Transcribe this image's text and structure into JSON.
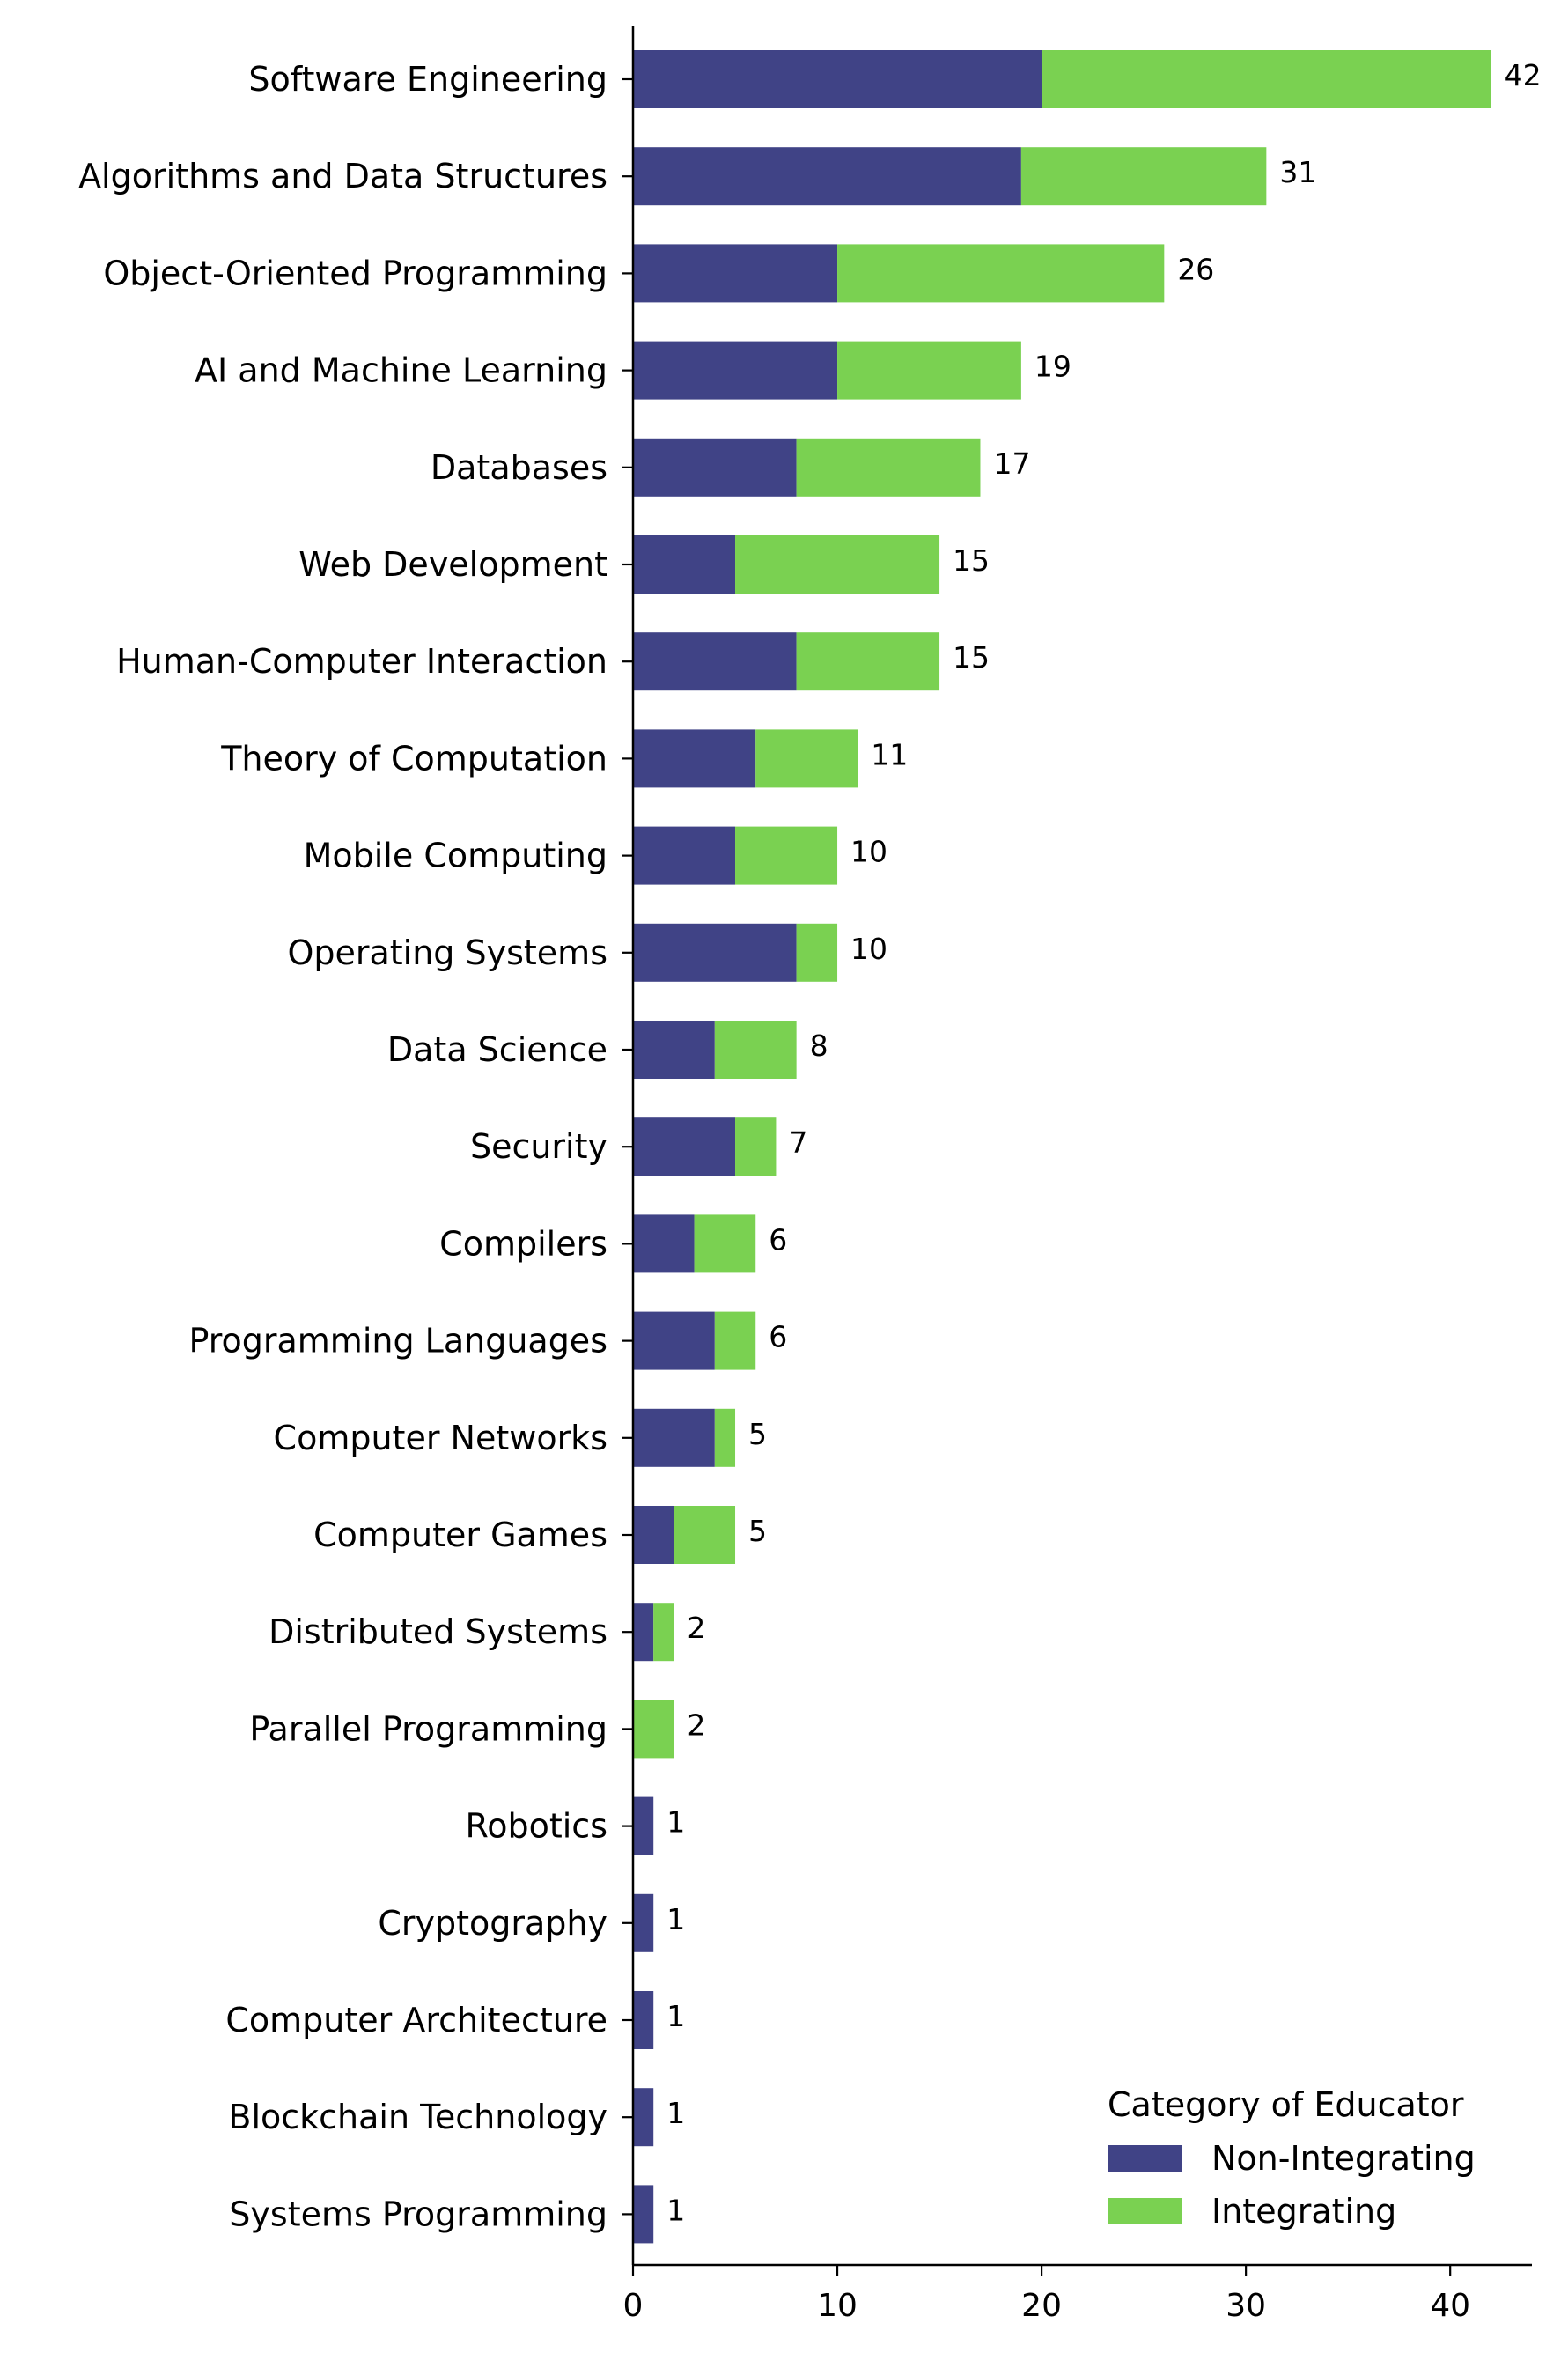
{
  "chart_data": {
    "type": "bar",
    "orientation": "horizontal",
    "stacked": true,
    "title": "",
    "xlabel": "",
    "ylabel": "",
    "xlim": [
      0,
      44
    ],
    "x_ticks": [
      0,
      10,
      20,
      30,
      40
    ],
    "grid": false,
    "legend_position": "bottom-right",
    "legend_title": "Category of Educator",
    "categories": [
      "Software Engineering",
      "Algorithms and Data Structures",
      "Object-Oriented Programming",
      "AI and Machine Learning",
      "Databases",
      "Web Development",
      "Human-Computer Interaction",
      "Theory of Computation",
      "Mobile Computing",
      "Operating Systems",
      "Data Science",
      "Security",
      "Compilers",
      "Programming Languages",
      "Computer Networks",
      "Computer Games",
      "Distributed Systems",
      "Parallel Programming",
      "Robotics",
      "Cryptography",
      "Computer Architecture",
      "Blockchain Technology",
      "Systems Programming"
    ],
    "series": [
      {
        "name": "Non-Integrating",
        "color": "#404386",
        "values": [
          20,
          19,
          10,
          10,
          8,
          5,
          8,
          6,
          5,
          8,
          4,
          5,
          3,
          4,
          4,
          2,
          1,
          0,
          1,
          1,
          1,
          1,
          1
        ]
      },
      {
        "name": "Integrating",
        "color": "#7ad151",
        "values": [
          22,
          12,
          16,
          9,
          9,
          10,
          7,
          5,
          5,
          2,
          4,
          2,
          3,
          2,
          1,
          3,
          1,
          2,
          0,
          0,
          0,
          0,
          0
        ]
      }
    ],
    "totals": [
      42,
      31,
      26,
      19,
      17,
      15,
      15,
      11,
      10,
      10,
      8,
      7,
      6,
      6,
      5,
      5,
      2,
      2,
      1,
      1,
      1,
      1,
      1
    ]
  }
}
